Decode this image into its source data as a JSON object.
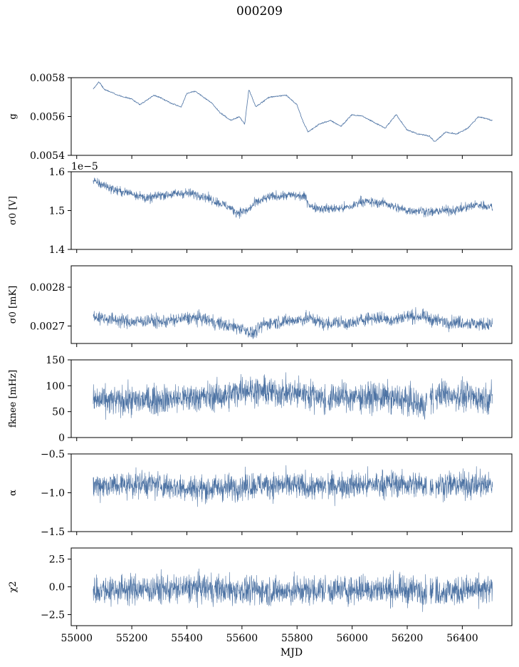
{
  "title": "000209",
  "chart_data": [
    {
      "type": "line",
      "panel": 1,
      "ylabel": "g",
      "ylim": [
        0.0054,
        0.0058
      ],
      "yticks": [
        0.0054,
        0.0056,
        0.0058
      ],
      "ytick_labels": [
        "0.0054",
        "0.0056",
        "0.0058"
      ],
      "offset_text": "",
      "color": "#4c72a3",
      "x": [
        55060,
        55080,
        55100,
        55150,
        55200,
        55230,
        55260,
        55280,
        55300,
        55340,
        55380,
        55400,
        55430,
        55460,
        55490,
        55520,
        55560,
        55590,
        55610,
        55625,
        55650,
        55700,
        55760,
        55800,
        55820,
        55840,
        55880,
        55920,
        55960,
        56000,
        56040,
        56080,
        56120,
        56160,
        56200,
        56240,
        56280,
        56300,
        56340,
        56380,
        56420,
        56460,
        56510
      ],
      "y": [
        0.00574,
        0.00578,
        0.00574,
        0.00571,
        0.00569,
        0.00566,
        0.00569,
        0.00571,
        0.0057,
        0.00567,
        0.00565,
        0.00572,
        0.00573,
        0.0057,
        0.00567,
        0.00562,
        0.00558,
        0.0056,
        0.00556,
        0.00574,
        0.00565,
        0.0057,
        0.00571,
        0.00566,
        0.00558,
        0.00552,
        0.00556,
        0.00558,
        0.00555,
        0.00561,
        0.0056,
        0.00557,
        0.00554,
        0.00561,
        0.00553,
        0.00551,
        0.0055,
        0.00547,
        0.00552,
        0.00551,
        0.00554,
        0.0056,
        0.00558
      ]
    },
    {
      "type": "line",
      "panel": 2,
      "ylabel": "σ0 [V]",
      "ylim": [
        1.4,
        1.6
      ],
      "yticks": [
        1.4,
        1.5,
        1.6
      ],
      "ytick_labels": [
        "1.4",
        "1.5",
        "1.6"
      ],
      "offset_text": "1e−5",
      "color": "#4c72a3",
      "x": [
        55060,
        55100,
        55150,
        55200,
        55260,
        55300,
        55400,
        55450,
        55500,
        55550,
        55580,
        55620,
        55650,
        55700,
        55780,
        55830,
        55850,
        55900,
        55950,
        56000,
        56030,
        56080,
        56120,
        56150,
        56200,
        56250,
        56290,
        56320,
        56360,
        56400,
        56450,
        56510
      ],
      "y": [
        1.575,
        1.565,
        1.55,
        1.545,
        1.53,
        1.54,
        1.545,
        1.54,
        1.525,
        1.51,
        1.495,
        1.5,
        1.52,
        1.535,
        1.54,
        1.535,
        1.51,
        1.505,
        1.505,
        1.51,
        1.525,
        1.52,
        1.52,
        1.51,
        1.5,
        1.5,
        1.495,
        1.5,
        1.5,
        1.505,
        1.515,
        1.51
      ]
    },
    {
      "type": "line",
      "panel": 3,
      "ylabel": "σ0 [mK]",
      "ylim": [
        0.002655,
        0.002855
      ],
      "yticks": [
        0.0027,
        0.0028
      ],
      "ytick_labels": [
        "0.0027",
        "0.0028"
      ],
      "offset_text": "",
      "color": "#4c72a3",
      "x": [
        55060,
        55100,
        55150,
        55200,
        55260,
        55300,
        55400,
        55450,
        55500,
        55550,
        55600,
        55640,
        55680,
        55720,
        55800,
        55850,
        55900,
        55950,
        56000,
        56050,
        56100,
        56150,
        56200,
        56250,
        56300,
        56350,
        56400,
        56450,
        56510
      ],
      "y": [
        0.002725,
        0.00272,
        0.002715,
        0.00271,
        0.002715,
        0.00271,
        0.00272,
        0.00272,
        0.00271,
        0.0027,
        0.002695,
        0.00268,
        0.002705,
        0.00271,
        0.002715,
        0.00272,
        0.002705,
        0.00271,
        0.002705,
        0.00272,
        0.00272,
        0.002715,
        0.002725,
        0.002725,
        0.002715,
        0.00271,
        0.00271,
        0.002705,
        0.002705
      ]
    },
    {
      "type": "line",
      "panel": 4,
      "ylabel": "fknee [mHz]",
      "ylim": [
        0,
        150
      ],
      "yticks": [
        0,
        50,
        100,
        150
      ],
      "ytick_labels": [
        "0",
        "50",
        "100",
        "150"
      ],
      "offset_text": "",
      "color": "#4c72a3",
      "x": [
        55060,
        55150,
        55250,
        55350,
        55450,
        55550,
        55600,
        55650,
        55700,
        55800,
        55880,
        55900,
        55950,
        56000,
        56100,
        56200,
        56260,
        56280,
        56300,
        56320,
        56400,
        56510
      ],
      "y": [
        72,
        70,
        72,
        75,
        78,
        80,
        95,
        90,
        88,
        85,
        82,
        70,
        80,
        78,
        78,
        72,
        60,
        80,
        75,
        85,
        80,
        75
      ]
    },
    {
      "type": "line",
      "panel": 5,
      "ylabel": "α",
      "ylim": [
        -1.5,
        -0.5
      ],
      "yticks": [
        -1.5,
        -1.0,
        -0.5
      ],
      "ytick_labels": [
        "−1.5",
        "−1.0",
        "−0.5"
      ],
      "offset_text": "",
      "color": "#4c72a3",
      "x": [
        55060,
        55150,
        55250,
        55350,
        55450,
        55550,
        55650,
        55750,
        55850,
        55950,
        56050,
        56150,
        56250,
        56350,
        56450,
        56510
      ],
      "y": [
        -0.9,
        -0.9,
        -0.88,
        -0.92,
        -0.95,
        -0.93,
        -0.9,
        -0.9,
        -0.93,
        -0.9,
        -0.9,
        -0.88,
        -0.9,
        -0.9,
        -0.9,
        -0.9
      ]
    },
    {
      "type": "line",
      "panel": 6,
      "ylabel": "χ2",
      "xlabel": "MJD",
      "ylim": [
        -3.5,
        3.5
      ],
      "yticks": [
        -2.5,
        0.0,
        2.5
      ],
      "ytick_labels": [
        "−2.5",
        "0.0",
        "2.5"
      ],
      "offset_text": "",
      "color": "#4c72a3",
      "x": [
        55060,
        55150,
        55250,
        55350,
        55450,
        55550,
        55650,
        55750,
        55850,
        55950,
        56050,
        56150,
        56250,
        56350,
        56450,
        56510
      ],
      "y": [
        -0.3,
        -0.2,
        -0.2,
        -0.2,
        -0.1,
        -0.3,
        -0.3,
        -0.4,
        -0.3,
        -0.3,
        -0.2,
        -0.3,
        -0.3,
        -0.4,
        -0.3,
        -0.3
      ]
    }
  ],
  "xaxis": {
    "label": "MJD",
    "xlim": [
      54980,
      56580
    ],
    "ticks": [
      55000,
      55200,
      55400,
      55600,
      55800,
      56000,
      56200,
      56400
    ],
    "tick_labels": [
      "55000",
      "55200",
      "55400",
      "55600",
      "55800",
      "56000",
      "56200",
      "56400"
    ]
  }
}
